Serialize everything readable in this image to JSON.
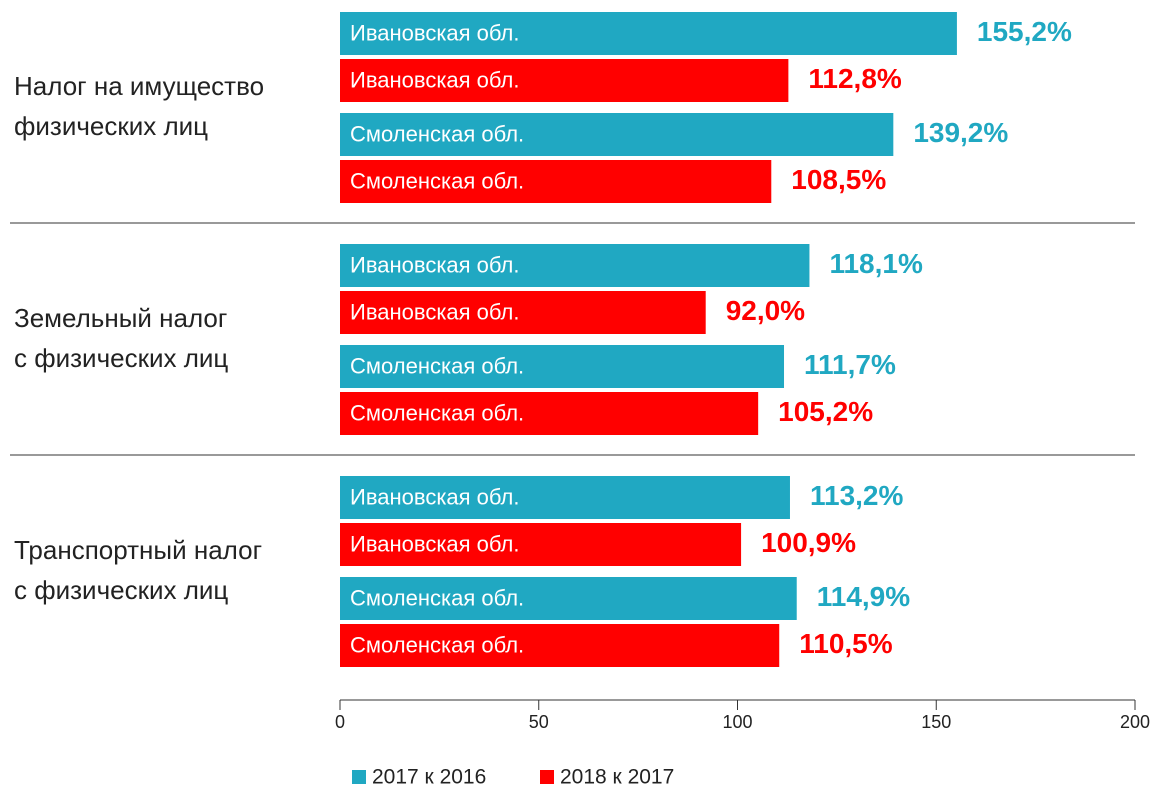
{
  "chart_data": {
    "type": "bar",
    "orientation": "horizontal",
    "categories": [
      "Налог на имущество\nфизических лиц",
      "Земельный налог\nс физических лиц",
      "Транспортный налог\nс физических лиц"
    ],
    "regions": [
      "Ивановская обл.",
      "Смоленская обл."
    ],
    "series": [
      {
        "name": "2017 к 2016",
        "color": "#20a8c2",
        "values": [
          [
            155.2,
            139.2
          ],
          [
            118.1,
            111.7
          ],
          [
            113.2,
            114.9
          ]
        ],
        "value_labels": [
          [
            "155,2%",
            "139,2%"
          ],
          [
            "118,1%",
            "111,7%"
          ],
          [
            "113,2%",
            "114,9%"
          ]
        ]
      },
      {
        "name": "2018 к 2017",
        "color": "#ff0000",
        "values": [
          [
            112.8,
            108.5
          ],
          [
            92.0,
            105.2
          ],
          [
            100.9,
            110.5
          ]
        ],
        "value_labels": [
          [
            "112,8%",
            "108,5%"
          ],
          [
            "92,0%",
            "105,2%"
          ],
          [
            "100,9%",
            "110,5%"
          ]
        ]
      }
    ],
    "xlim": [
      0,
      200
    ],
    "xticks": [
      0,
      50,
      100,
      150,
      200
    ]
  }
}
